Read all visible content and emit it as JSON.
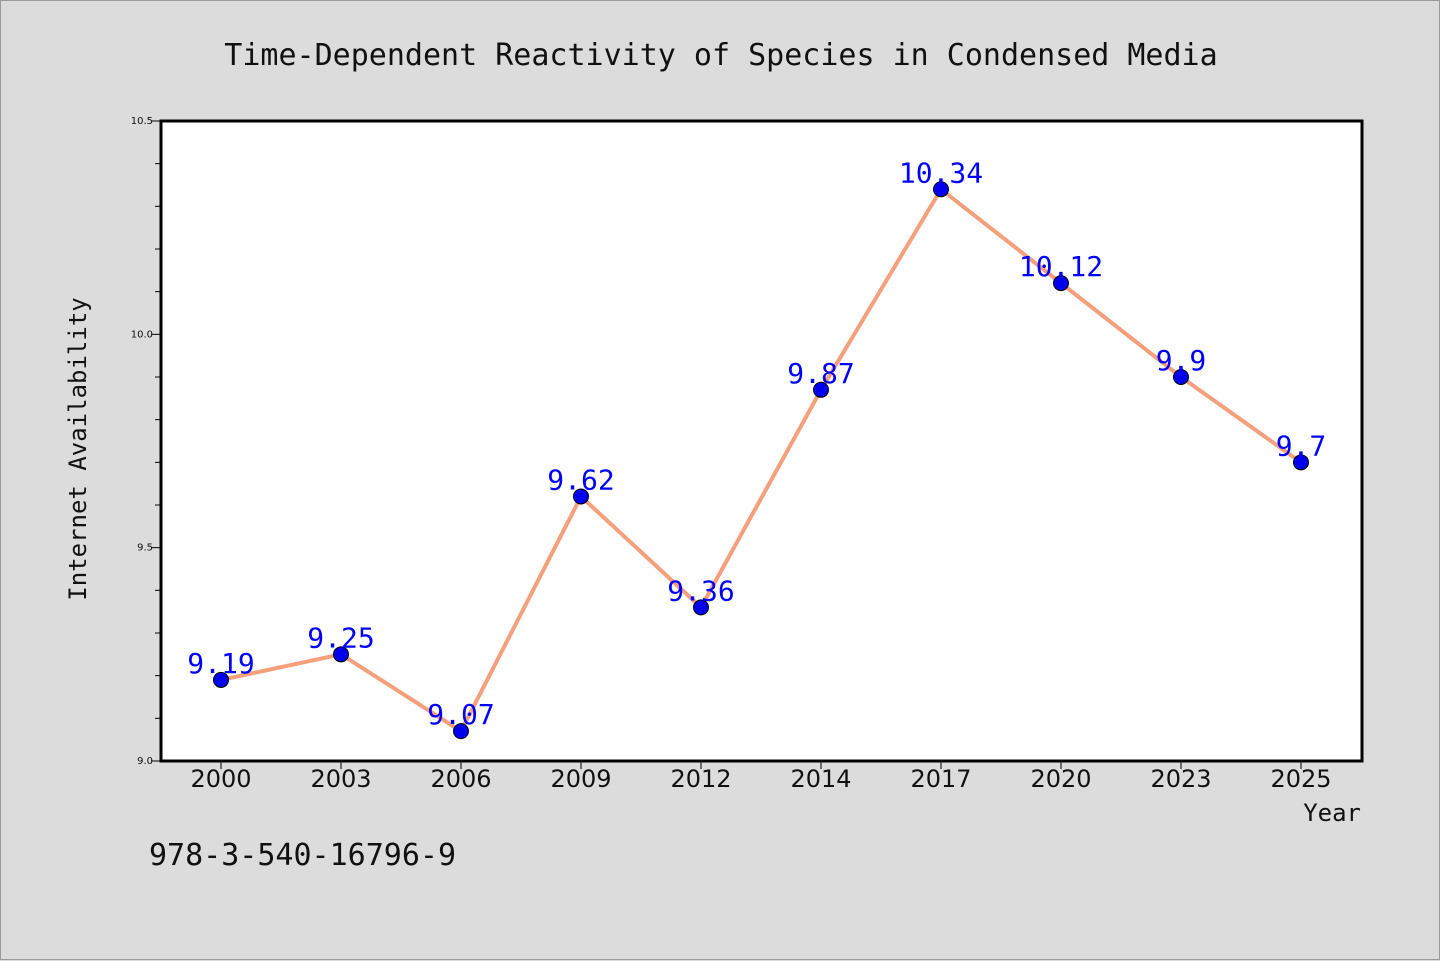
{
  "chart_data": {
    "type": "line",
    "title": "Time-Dependent Reactivity of Species in Condensed Media",
    "xlabel": "Year",
    "ylabel": "Internet Availability",
    "categories": [
      "2000",
      "2003",
      "2006",
      "2009",
      "2012",
      "2014",
      "2017",
      "2020",
      "2023",
      "2025"
    ],
    "series": [
      {
        "values": [
          9.19,
          9.25,
          9.07,
          9.62,
          9.36,
          9.87,
          10.34,
          10.12,
          9.9,
          9.7
        ],
        "labels": [
          "9.19",
          "9.25",
          "9.07",
          "9.62",
          "9.36",
          "9.87",
          "10.34",
          "10.12",
          "9.9",
          "9.7"
        ],
        "line_color": "#f4a07c",
        "marker_color": "#0000ee",
        "label_color": "#0000ff"
      }
    ],
    "ylim": [
      9.0,
      10.5
    ],
    "y_ticks": [
      "9.0",
      "9.5",
      "10.0",
      "10.5"
    ],
    "grid": false,
    "annotation": "978-3-540-16796-9"
  }
}
